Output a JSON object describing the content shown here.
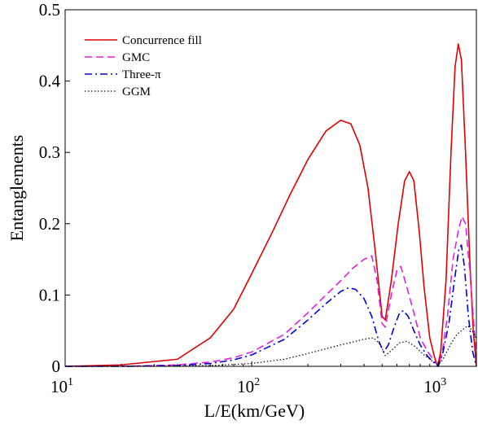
{
  "chart_data": {
    "type": "line",
    "xlabel": "L/E(km/GeV)",
    "ylabel": "Entanglements",
    "xscale": "log",
    "xlim": [
      10,
      1600
    ],
    "ylim": [
      0,
      0.5
    ],
    "grid": false,
    "legend_position": "top-left",
    "yticks": [
      {
        "value": 0,
        "label": "0"
      },
      {
        "value": 0.1,
        "label": "0.1"
      },
      {
        "value": 0.2,
        "label": "0.2"
      },
      {
        "value": 0.3,
        "label": "0.3"
      },
      {
        "value": 0.4,
        "label": "0.4"
      },
      {
        "value": 0.5,
        "label": "0.5"
      }
    ],
    "xticks": [
      {
        "value": 10,
        "base": "10",
        "exp": "1"
      },
      {
        "value": 100,
        "base": "10",
        "exp": "2"
      },
      {
        "value": 1000,
        "base": "10",
        "exp": "3"
      }
    ],
    "series": [
      {
        "name": "Concurrence fill",
        "color": "#e00000",
        "dash": "solid",
        "points": [
          [
            10,
            0.0
          ],
          [
            20,
            0.002
          ],
          [
            40,
            0.01
          ],
          [
            60,
            0.04
          ],
          [
            80,
            0.08
          ],
          [
            100,
            0.13
          ],
          [
            130,
            0.19
          ],
          [
            160,
            0.24
          ],
          [
            200,
            0.29
          ],
          [
            250,
            0.33
          ],
          [
            300,
            0.345
          ],
          [
            340,
            0.34
          ],
          [
            380,
            0.31
          ],
          [
            420,
            0.25
          ],
          [
            460,
            0.16
          ],
          [
            500,
            0.07
          ],
          [
            520,
            0.065
          ],
          [
            560,
            0.12
          ],
          [
            610,
            0.2
          ],
          [
            660,
            0.26
          ],
          [
            700,
            0.273
          ],
          [
            740,
            0.26
          ],
          [
            790,
            0.19
          ],
          [
            840,
            0.11
          ],
          [
            900,
            0.04
          ],
          [
            950,
            0.015
          ],
          [
            990,
            0.0
          ],
          [
            1030,
            0.02
          ],
          [
            1100,
            0.12
          ],
          [
            1170,
            0.3
          ],
          [
            1230,
            0.42
          ],
          [
            1280,
            0.452
          ],
          [
            1330,
            0.43
          ],
          [
            1400,
            0.3
          ],
          [
            1480,
            0.14
          ],
          [
            1540,
            0.05
          ],
          [
            1600,
            0.0
          ]
        ]
      },
      {
        "name": "GMC",
        "color": "#e020e0",
        "dash": "dashed",
        "points": [
          [
            10,
            0.0
          ],
          [
            20,
            0.0
          ],
          [
            40,
            0.002
          ],
          [
            60,
            0.006
          ],
          [
            80,
            0.012
          ],
          [
            100,
            0.02
          ],
          [
            150,
            0.045
          ],
          [
            200,
            0.075
          ],
          [
            250,
            0.1
          ],
          [
            300,
            0.12
          ],
          [
            350,
            0.138
          ],
          [
            400,
            0.15
          ],
          [
            440,
            0.155
          ],
          [
            470,
            0.12
          ],
          [
            500,
            0.06
          ],
          [
            520,
            0.055
          ],
          [
            560,
            0.1
          ],
          [
            600,
            0.135
          ],
          [
            630,
            0.14
          ],
          [
            680,
            0.11
          ],
          [
            740,
            0.075
          ],
          [
            800,
            0.04
          ],
          [
            880,
            0.02
          ],
          [
            950,
            0.008
          ],
          [
            1000,
            0.0
          ],
          [
            1050,
            0.02
          ],
          [
            1120,
            0.07
          ],
          [
            1200,
            0.15
          ],
          [
            1280,
            0.19
          ],
          [
            1340,
            0.21
          ],
          [
            1400,
            0.2
          ],
          [
            1480,
            0.13
          ],
          [
            1560,
            0.05
          ],
          [
            1600,
            0.02
          ]
        ]
      },
      {
        "name": "Three-π",
        "color": "#0000e0",
        "dash": "dashdot",
        "points": [
          [
            10,
            0.0
          ],
          [
            20,
            0.0
          ],
          [
            40,
            0.001
          ],
          [
            60,
            0.004
          ],
          [
            80,
            0.009
          ],
          [
            100,
            0.016
          ],
          [
            150,
            0.038
          ],
          [
            200,
            0.065
          ],
          [
            250,
            0.088
          ],
          [
            300,
            0.105
          ],
          [
            330,
            0.11
          ],
          [
            360,
            0.108
          ],
          [
            400,
            0.095
          ],
          [
            440,
            0.07
          ],
          [
            480,
            0.035
          ],
          [
            510,
            0.02
          ],
          [
            540,
            0.03
          ],
          [
            580,
            0.055
          ],
          [
            620,
            0.075
          ],
          [
            650,
            0.078
          ],
          [
            690,
            0.07
          ],
          [
            740,
            0.05
          ],
          [
            800,
            0.03
          ],
          [
            870,
            0.015
          ],
          [
            940,
            0.006
          ],
          [
            1000,
            0.0
          ],
          [
            1060,
            0.02
          ],
          [
            1140,
            0.06
          ],
          [
            1220,
            0.12
          ],
          [
            1290,
            0.165
          ],
          [
            1330,
            0.17
          ],
          [
            1380,
            0.14
          ],
          [
            1450,
            0.07
          ],
          [
            1530,
            0.02
          ],
          [
            1600,
            0.0
          ]
        ]
      },
      {
        "name": "GGM",
        "color": "#000000",
        "dash": "dotted",
        "points": [
          [
            10,
            0.0
          ],
          [
            30,
            0.0
          ],
          [
            60,
            0.001
          ],
          [
            100,
            0.004
          ],
          [
            150,
            0.01
          ],
          [
            200,
            0.018
          ],
          [
            300,
            0.03
          ],
          [
            400,
            0.038
          ],
          [
            450,
            0.04
          ],
          [
            490,
            0.03
          ],
          [
            520,
            0.015
          ],
          [
            560,
            0.022
          ],
          [
            620,
            0.033
          ],
          [
            680,
            0.035
          ],
          [
            750,
            0.028
          ],
          [
            830,
            0.017
          ],
          [
            920,
            0.008
          ],
          [
            1000,
            0.002
          ],
          [
            1060,
            0.01
          ],
          [
            1160,
            0.03
          ],
          [
            1260,
            0.045
          ],
          [
            1360,
            0.052
          ],
          [
            1440,
            0.057
          ],
          [
            1520,
            0.05
          ],
          [
            1600,
            0.04
          ]
        ]
      }
    ]
  }
}
